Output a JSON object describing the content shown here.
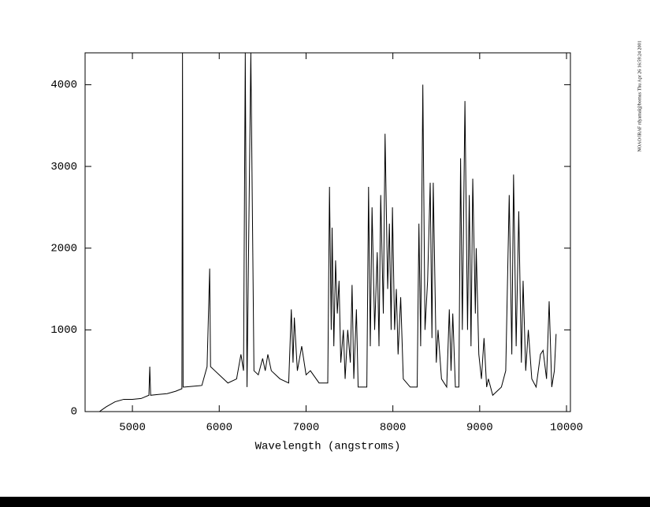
{
  "chart_data": {
    "type": "line",
    "x_label": "Wavelength (angstroms)",
    "annotation": "NOAO/IRAF rdyamal@bornus Thu Apr 26 16:59:24 2001",
    "xlim": [
      4455,
      10045
    ],
    "ylim": [
      0,
      4390
    ],
    "xticks": [
      5000,
      6000,
      7000,
      8000,
      9000,
      10000
    ],
    "yticks": [
      0,
      1000,
      2000,
      3000,
      4000
    ],
    "series": [
      {
        "color": "#000000",
        "x": [
          4620,
          4700,
          4800,
          4900,
          5000,
          5100,
          5190,
          5200,
          5210,
          5300,
          5400,
          5500,
          5570,
          5577,
          5584,
          5600,
          5700,
          5800,
          5860,
          5890,
          5900,
          5950,
          6000,
          6100,
          6200,
          6250,
          6280,
          6300,
          6320,
          6364,
          6400,
          6450,
          6500,
          6530,
          6560,
          6600,
          6700,
          6800,
          6830,
          6850,
          6865,
          6900,
          6950,
          7000,
          7050,
          7150,
          7250,
          7270,
          7290,
          7300,
          7320,
          7340,
          7360,
          7380,
          7400,
          7430,
          7450,
          7480,
          7510,
          7530,
          7550,
          7580,
          7600,
          7700,
          7720,
          7740,
          7760,
          7790,
          7820,
          7840,
          7860,
          7890,
          7910,
          7940,
          7960,
          7980,
          7995,
          8020,
          8040,
          8060,
          8090,
          8120,
          8200,
          8280,
          8300,
          8320,
          8345,
          8370,
          8400,
          8430,
          8450,
          8465,
          8500,
          8520,
          8560,
          8620,
          8650,
          8670,
          8690,
          8720,
          8760,
          8780,
          8800,
          8830,
          8860,
          8880,
          8900,
          8920,
          8950,
          8960,
          8990,
          9020,
          9050,
          9080,
          9100,
          9150,
          9250,
          9300,
          9340,
          9370,
          9390,
          9420,
          9450,
          9480,
          9500,
          9530,
          9560,
          9600,
          9650,
          9700,
          9730,
          9770,
          9800,
          9830,
          9860,
          9880
        ],
        "values": [
          0,
          60,
          120,
          150,
          150,
          160,
          200,
          550,
          200,
          210,
          220,
          250,
          280,
          4390,
          300,
          300,
          310,
          320,
          550,
          1750,
          550,
          500,
          450,
          350,
          400,
          700,
          500,
          4390,
          300,
          4390,
          500,
          450,
          650,
          500,
          700,
          500,
          400,
          350,
          1250,
          600,
          1150,
          500,
          800,
          450,
          500,
          350,
          350,
          2750,
          1000,
          2250,
          800,
          1850,
          1200,
          1600,
          600,
          1000,
          400,
          1000,
          600,
          1550,
          400,
          1250,
          300,
          300,
          2750,
          800,
          2500,
          1000,
          1950,
          800,
          2650,
          1200,
          3400,
          1500,
          2300,
          1000,
          2500,
          1000,
          1500,
          700,
          1400,
          400,
          300,
          300,
          2300,
          800,
          4000,
          1000,
          1600,
          2800,
          900,
          2800,
          600,
          1000,
          400,
          300,
          1250,
          500,
          1200,
          300,
          300,
          3100,
          1000,
          3800,
          1000,
          2650,
          800,
          2850,
          1200,
          2000,
          700,
          400,
          900,
          300,
          400,
          200,
          300,
          500,
          2650,
          700,
          2900,
          800,
          2450,
          600,
          1600,
          500,
          1000,
          400,
          300,
          700,
          750,
          400,
          1350,
          300,
          500,
          950
        ]
      }
    ]
  }
}
